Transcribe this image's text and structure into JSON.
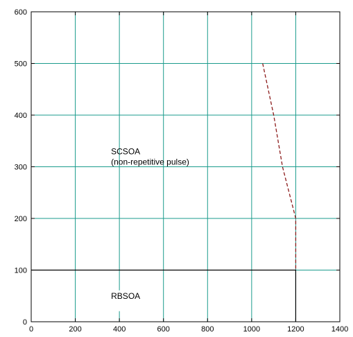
{
  "chart_data": {
    "type": "line",
    "title": "",
    "xlabel": "",
    "ylabel": "",
    "xlim": [
      0,
      1400
    ],
    "ylim": [
      0,
      600
    ],
    "x_ticks": [
      0,
      200,
      400,
      600,
      800,
      1000,
      1200,
      1400
    ],
    "y_ticks": [
      0,
      100,
      200,
      300,
      400,
      500,
      600
    ],
    "grid": true,
    "legend": "none",
    "colors": {
      "grid": "#1a9b8c",
      "axis": "#000000",
      "boundary": "#000000",
      "scsoa_curve": "#8b1a1a"
    },
    "series": [
      {
        "style": "solid",
        "points": [
          [
            0,
            100
          ],
          [
            1200,
            100
          ],
          [
            1200,
            0
          ]
        ]
      },
      {
        "style": "dashed",
        "points": [
          [
            1050,
            500
          ],
          [
            1100,
            400
          ],
          [
            1140,
            300
          ],
          [
            1200,
            200
          ],
          [
            1200,
            100
          ]
        ]
      }
    ],
    "annotations": [
      {
        "id": "scsoa",
        "lines": [
          "SCSOA",
          "(non-repetitive pulse)"
        ],
        "x": 400,
        "y": 300
      },
      {
        "id": "rbsoa",
        "lines": [
          "RBSOA"
        ],
        "x": 400,
        "y": 50
      }
    ]
  }
}
